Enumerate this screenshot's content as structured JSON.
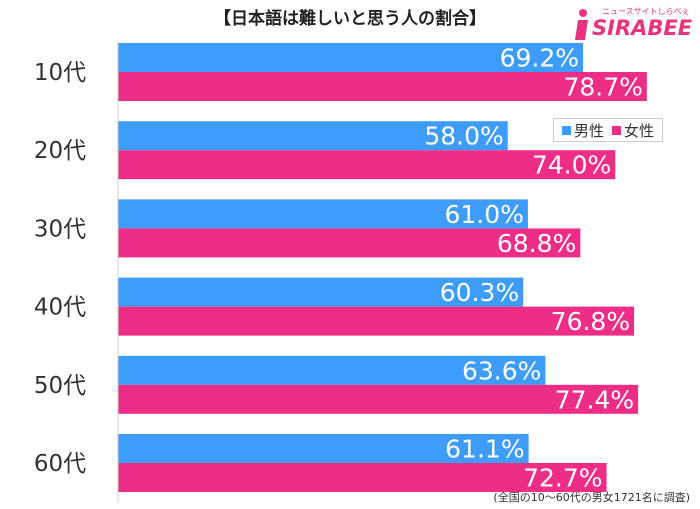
{
  "title": "【日本語は難しいと思う人の割合】",
  "logo": {
    "text": "SIRABEE",
    "subtitle": "ニュースサイトしらべぇ",
    "icon": "sirabee-logo-icon"
  },
  "footnote": "(全国の10〜60代の男女1721名に調査)",
  "colors": {
    "male": "#3e9dfc",
    "female": "#ee2d86",
    "logo": "#e8347c"
  },
  "chart_data": {
    "type": "bar",
    "orientation": "horizontal",
    "categories": [
      "10代",
      "20代",
      "30代",
      "40代",
      "50代",
      "60代"
    ],
    "series": [
      {
        "name": "男性",
        "values": [
          69.2,
          58.0,
          61.0,
          60.3,
          63.6,
          61.1
        ]
      },
      {
        "name": "女性",
        "values": [
          78.7,
          74.0,
          68.8,
          76.8,
          77.4,
          72.7
        ]
      }
    ],
    "value_format": "percent_one_decimal",
    "xlim": [
      0,
      100
    ],
    "grid": false,
    "legend": "top-right"
  }
}
